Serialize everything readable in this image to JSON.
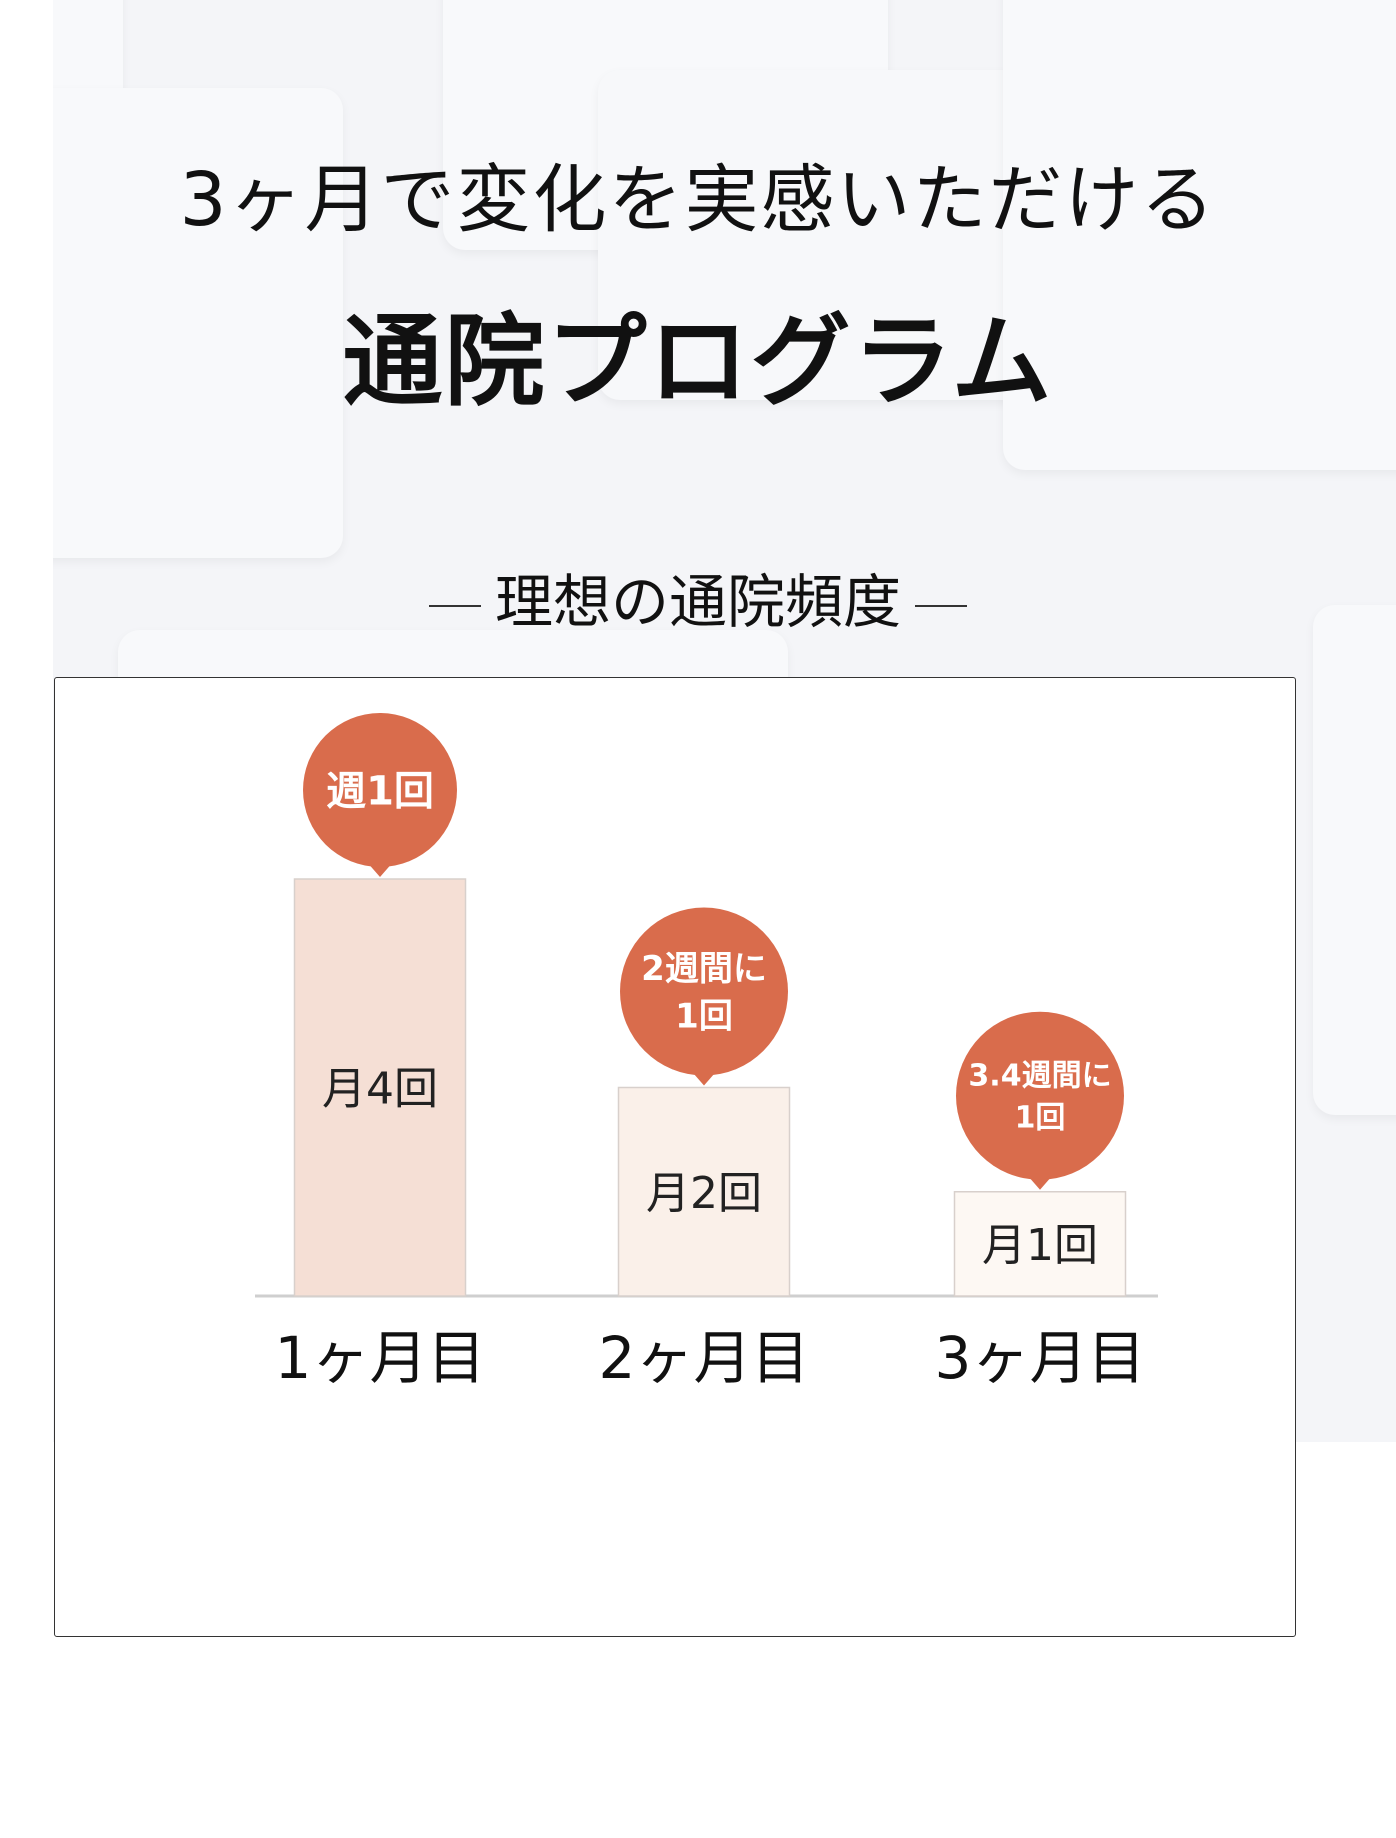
{
  "header": {
    "title_line1": "3ヶ月で変化を実感いただける",
    "title_line2": "通院プログラム",
    "subtitle": "理想の通院頻度"
  },
  "colors": {
    "bubble": "#d96c4c",
    "bar1": "#f5dfd5",
    "bar2": "#faf0e9",
    "bar3": "#fdf8f3",
    "bar_border": "#d8d0cc",
    "axis": "#cfcfcf",
    "background": "#f4f5f8"
  },
  "chart_data": {
    "type": "bar",
    "categories": [
      "1ヶ月目",
      "2ヶ月目",
      "3ヶ月目"
    ],
    "values": [
      4,
      2,
      1
    ],
    "bar_labels": [
      "月4回",
      "月2回",
      "月1回"
    ],
    "callouts": [
      [
        "週1回"
      ],
      [
        "2週間に",
        "1回"
      ],
      [
        "3.4週間に",
        "1回"
      ]
    ],
    "ylim": [
      0,
      4
    ],
    "grid": false
  }
}
